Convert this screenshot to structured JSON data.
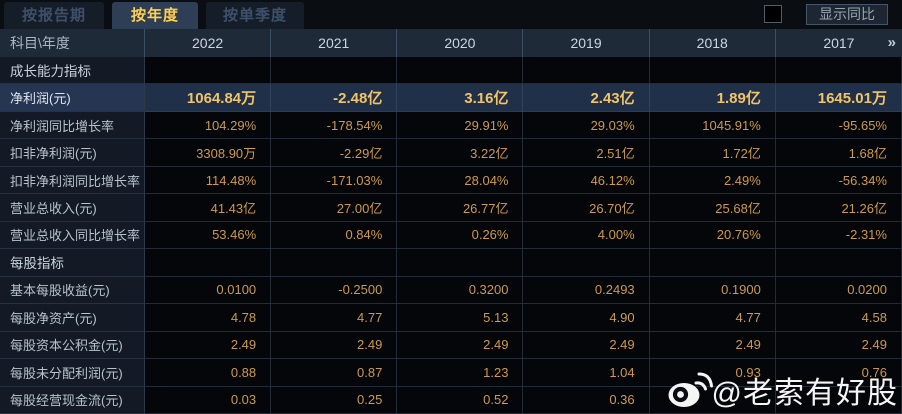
{
  "tabs": [
    {
      "name": "tab-by-report-period",
      "label": "按报告期",
      "active": false
    },
    {
      "name": "tab-by-year",
      "label": "按年度",
      "active": true
    },
    {
      "name": "tab-by-quarter",
      "label": "按单季度",
      "active": false
    }
  ],
  "controls": {
    "show_yoy_label": "显示同比",
    "show_yoy_checked": false
  },
  "table": {
    "corner_header": "科目\\年度",
    "year_columns": [
      "2022",
      "2021",
      "2020",
      "2019",
      "2018",
      "2017"
    ],
    "more_columns_icon": "»",
    "rows": [
      {
        "type": "section",
        "highlight": false,
        "label": "成长能力指标",
        "values": [
          "",
          "",
          "",
          "",
          "",
          ""
        ]
      },
      {
        "type": "data",
        "highlight": true,
        "label": "净利润(元)",
        "values": [
          "1064.84万",
          "-2.48亿",
          "3.16亿",
          "2.43亿",
          "1.89亿",
          "1645.01万"
        ]
      },
      {
        "type": "data",
        "highlight": false,
        "label": "净利润同比增长率",
        "values": [
          "104.29%",
          "-178.54%",
          "29.91%",
          "29.03%",
          "1045.91%",
          "-95.65%"
        ]
      },
      {
        "type": "data",
        "highlight": false,
        "label": "扣非净利润(元)",
        "values": [
          "3308.90万",
          "-2.29亿",
          "3.22亿",
          "2.51亿",
          "1.72亿",
          "1.68亿"
        ]
      },
      {
        "type": "data",
        "highlight": false,
        "label": "扣非净利润同比增长率",
        "values": [
          "114.48%",
          "-171.03%",
          "28.04%",
          "46.12%",
          "2.49%",
          "-56.34%"
        ]
      },
      {
        "type": "data",
        "highlight": false,
        "label": "营业总收入(元)",
        "values": [
          "41.43亿",
          "27.00亿",
          "26.77亿",
          "26.70亿",
          "25.68亿",
          "21.26亿"
        ]
      },
      {
        "type": "data",
        "highlight": false,
        "label": "营业总收入同比增长率",
        "values": [
          "53.46%",
          "0.84%",
          "0.26%",
          "4.00%",
          "20.76%",
          "-2.31%"
        ]
      },
      {
        "type": "section",
        "highlight": false,
        "label": "每股指标",
        "values": [
          "",
          "",
          "",
          "",
          "",
          ""
        ]
      },
      {
        "type": "data",
        "highlight": false,
        "label": "基本每股收益(元)",
        "values": [
          "0.0100",
          "-0.2500",
          "0.3200",
          "0.2493",
          "0.1900",
          "0.0200"
        ]
      },
      {
        "type": "data",
        "highlight": false,
        "label": "每股净资产(元)",
        "values": [
          "4.78",
          "4.77",
          "5.13",
          "4.90",
          "4.77",
          "4.58"
        ]
      },
      {
        "type": "data",
        "highlight": false,
        "label": "每股资本公积金(元)",
        "values": [
          "2.49",
          "2.49",
          "2.49",
          "2.49",
          "2.49",
          "2.49"
        ]
      },
      {
        "type": "data",
        "highlight": false,
        "label": "每股未分配利润(元)",
        "values": [
          "0.88",
          "0.87",
          "1.23",
          "1.04",
          "0.93",
          "0.76"
        ]
      },
      {
        "type": "data",
        "highlight": false,
        "label": "每股经营现金流(元)",
        "values": [
          "0.03",
          "0.25",
          "0.52",
          "0.36",
          "",
          ""
        ]
      }
    ]
  },
  "watermark": {
    "icon": "weibo-icon",
    "text": "@老索有好股"
  },
  "colors": {
    "active_tab_text": "#ffd24e",
    "value_gold": "#cd9a4b",
    "highlight_row_bg": "#203049",
    "highlight_value_gold": "#f1c469",
    "header_bg": "#1f2a39",
    "label_cell_bg": "#131a25"
  }
}
